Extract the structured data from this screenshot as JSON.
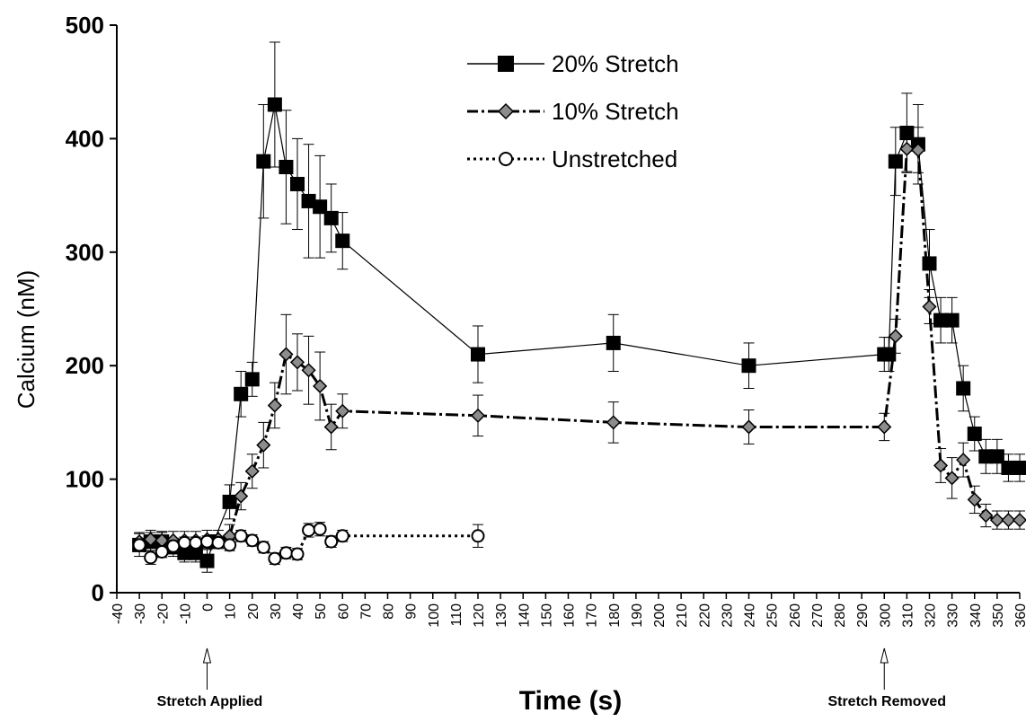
{
  "chart_data": {
    "type": "line",
    "title": "",
    "xlabel": "Time (s)",
    "ylabel": "Calcium (nM)",
    "xlim": [
      -40,
      360
    ],
    "ylim": [
      0,
      500
    ],
    "x_ticks": [
      -40,
      -30,
      -20,
      -10,
      0,
      10,
      20,
      30,
      40,
      50,
      60,
      70,
      80,
      90,
      100,
      110,
      120,
      130,
      140,
      150,
      160,
      170,
      180,
      190,
      200,
      210,
      220,
      230,
      240,
      250,
      260,
      270,
      280,
      290,
      300,
      310,
      320,
      330,
      340,
      350,
      360
    ],
    "y_ticks": [
      0,
      100,
      200,
      300,
      400,
      500
    ],
    "grid": false,
    "legend_position": "top-center",
    "series": [
      {
        "name": "20% Stretch",
        "marker": "filled-square",
        "line": "solid",
        "color": "#000000",
        "x": [
          -30,
          -25,
          -20,
          -15,
          -10,
          -5,
          0,
          3,
          10,
          15,
          20,
          25,
          30,
          35,
          40,
          45,
          50,
          55,
          60,
          120,
          180,
          240,
          300,
          302,
          305,
          310,
          315,
          320,
          325,
          330,
          335,
          340,
          345,
          350,
          355,
          360
        ],
        "y": [
          42,
          45,
          45,
          40,
          35,
          35,
          28,
          45,
          80,
          175,
          188,
          380,
          430,
          375,
          360,
          345,
          340,
          330,
          310,
          210,
          220,
          200,
          210,
          210,
          380,
          405,
          395,
          290,
          240,
          240,
          180,
          140,
          120,
          120,
          110,
          110
        ],
        "err": [
          10,
          8,
          8,
          8,
          8,
          8,
          10,
          6,
          15,
          20,
          15,
          50,
          55,
          50,
          40,
          50,
          45,
          30,
          25,
          25,
          25,
          20,
          15,
          15,
          30,
          35,
          35,
          30,
          20,
          20,
          20,
          15,
          15,
          15,
          12,
          12
        ]
      },
      {
        "name": "10% Stretch",
        "marker": "gray-diamond",
        "line": "dash-dot",
        "color": "#000000",
        "x": [
          -30,
          -25,
          -20,
          -15,
          -10,
          -5,
          0,
          5,
          10,
          15,
          20,
          25,
          30,
          35,
          40,
          45,
          50,
          55,
          60,
          120,
          180,
          240,
          300,
          305,
          310,
          315,
          320,
          325,
          330,
          335,
          340,
          345,
          350,
          355,
          360
        ],
        "y": [
          45,
          47,
          46,
          46,
          46,
          46,
          47,
          47,
          50,
          85,
          107,
          130,
          165,
          210,
          203,
          196,
          182,
          146,
          160,
          156,
          150,
          146,
          146,
          226,
          391,
          390,
          252,
          112,
          101,
          117,
          82,
          68,
          64,
          64,
          64
        ],
        "err": [
          8,
          8,
          8,
          8,
          8,
          8,
          8,
          8,
          10,
          12,
          15,
          20,
          20,
          35,
          25,
          30,
          30,
          20,
          15,
          18,
          18,
          15,
          12,
          15,
          20,
          20,
          15,
          15,
          18,
          15,
          12,
          10,
          8,
          8,
          8
        ]
      },
      {
        "name": "Unstretched",
        "marker": "open-circle",
        "line": "dotted",
        "color": "#000000",
        "x": [
          -30,
          -25,
          -20,
          -15,
          -10,
          -5,
          0,
          5,
          10,
          15,
          20,
          25,
          30,
          35,
          40,
          45,
          50,
          55,
          60,
          120
        ],
        "y": [
          42,
          31,
          36,
          41,
          44,
          44,
          45,
          44,
          42,
          50,
          46,
          40,
          30,
          35,
          34,
          55,
          56,
          45,
          50,
          50
        ],
        "err": [
          5,
          6,
          5,
          5,
          5,
          5,
          5,
          5,
          5,
          5,
          5,
          5,
          5,
          5,
          5,
          6,
          6,
          5,
          5,
          10
        ]
      }
    ],
    "annotations": [
      {
        "text": "Stretch Applied",
        "x": 0
      },
      {
        "text": "Stretch Removed",
        "x": 300
      }
    ]
  }
}
